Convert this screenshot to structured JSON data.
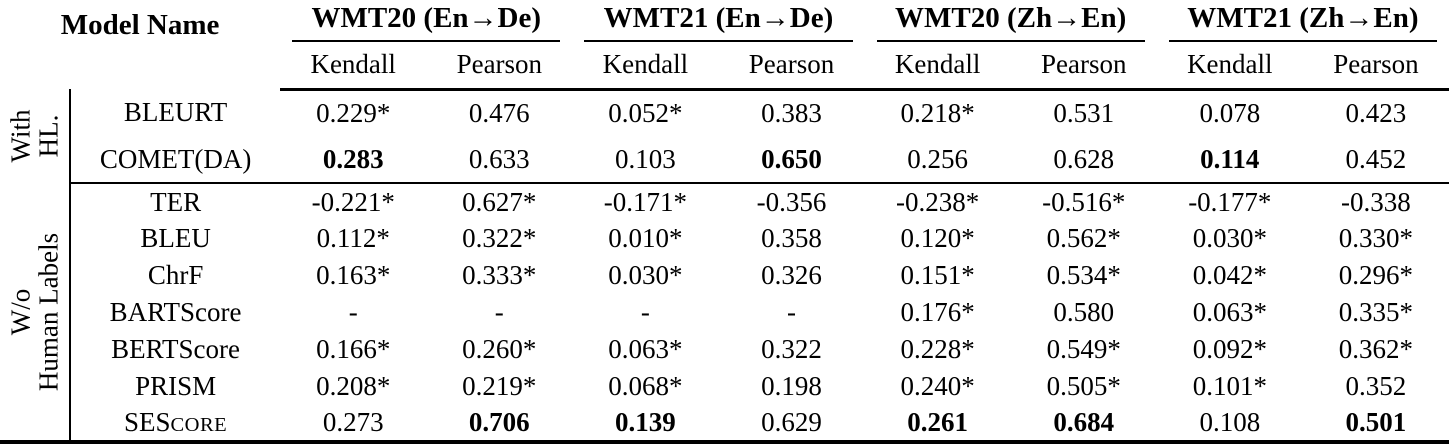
{
  "header": {
    "model_name": "Model Name",
    "groups": [
      {
        "label": "WMT20 (En→De)"
      },
      {
        "label": "WMT21 (En→De)"
      },
      {
        "label": "WMT20 (Zh→En)"
      },
      {
        "label": "WMT21 (Zh→En)"
      }
    ],
    "metric_cols": [
      "Kendall",
      "Pearson",
      "Kendall",
      "Pearson",
      "Kendall",
      "Pearson",
      "Kendall",
      "Pearson"
    ]
  },
  "row_groups": [
    {
      "label_lines": [
        "With",
        "HL."
      ],
      "rows": [
        {
          "model": "BLEURT",
          "values": [
            "0.229*",
            "0.476",
            "0.052*",
            "0.383",
            "0.218*",
            "0.531",
            "0.078",
            "0.423"
          ],
          "bold": []
        },
        {
          "model": "COMET(DA)",
          "values": [
            "0.283",
            "0.633",
            "0.103",
            "0.650",
            "0.256",
            "0.628",
            "0.114",
            "0.452"
          ],
          "bold": [
            0,
            3,
            6
          ]
        }
      ]
    },
    {
      "label_lines": [
        "W/o",
        "Human Labels"
      ],
      "rows": [
        {
          "model": "TER",
          "values": [
            "-0.221*",
            "0.627*",
            "-0.171*",
            "-0.356",
            "-0.238*",
            "-0.516*",
            "-0.177*",
            "-0.338"
          ],
          "bold": []
        },
        {
          "model": "BLEU",
          "values": [
            "0.112*",
            "0.322*",
            "0.010*",
            "0.358",
            "0.120*",
            "0.562*",
            "0.030*",
            "0.330*"
          ],
          "bold": []
        },
        {
          "model": "ChrF",
          "values": [
            "0.163*",
            "0.333*",
            "0.030*",
            "0.326",
            "0.151*",
            "0.534*",
            "0.042*",
            "0.296*"
          ],
          "bold": []
        },
        {
          "model": "BARTScore",
          "values": [
            "-",
            "-",
            "-",
            "-",
            "0.176*",
            "0.580",
            "0.063*",
            "0.335*"
          ],
          "bold": []
        },
        {
          "model": "BERTScore",
          "values": [
            "0.166*",
            "0.260*",
            "0.063*",
            "0.322",
            "0.228*",
            "0.549*",
            "0.092*",
            "0.362*"
          ],
          "bold": []
        },
        {
          "model": "PRISM",
          "values": [
            "0.208*",
            "0.219*",
            "0.068*",
            "0.198",
            "0.240*",
            "0.505*",
            "0.101*",
            "0.352"
          ],
          "bold": []
        },
        {
          "model": "SEScore",
          "model_parts": [
            {
              "text": "SES",
              "small_caps": false
            },
            {
              "text": "CORE",
              "small_caps": true
            }
          ],
          "values": [
            "0.273",
            "0.706",
            "0.139",
            "0.629",
            "0.261",
            "0.684",
            "0.108",
            "0.501"
          ],
          "bold": [
            1,
            2,
            4,
            5,
            7
          ]
        }
      ]
    }
  ]
}
